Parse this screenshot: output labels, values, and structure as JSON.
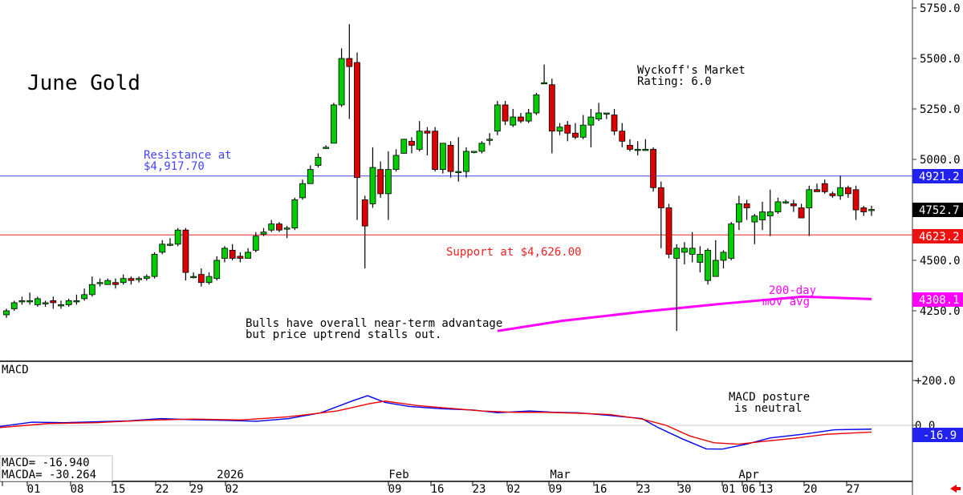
{
  "title": "June Gold",
  "rating": {
    "line1": "Wyckoff's Market",
    "line2": "Rating: 6.0"
  },
  "annotations": {
    "resistance": {
      "line1": "Resistance at",
      "line2": "$4,917.70"
    },
    "support": "Support at $4,626.00",
    "ma": {
      "line1": "200-day",
      "line2": "mov  avg"
    },
    "bulls": {
      "line1": "Bulls have overall near-term advantage",
      "line2": "but price uptrend stalls out."
    },
    "macd_posture": {
      "line1": "MACD posture",
      "line2": "is neutral"
    }
  },
  "price_axis": {
    "ticks": [
      4250,
      4500,
      4750,
      5000,
      5250,
      5500,
      5750
    ],
    "labels": [
      "4250.0",
      "4500.0",
      "4750.0",
      "5000.0",
      "5250.0",
      "5500.0",
      "5750.0"
    ]
  },
  "price_badges": {
    "resistance": "4921.2",
    "last": "4752.7",
    "support": "4623.2",
    "ma": "4308.1"
  },
  "macd_panel": {
    "label": "MACD",
    "axis_labels": [
      "+200.0",
      "0.0"
    ],
    "badge": "-16.9",
    "readout": {
      "macd": "MACD=   -16.940",
      "macda": "MACDA= -30.264"
    }
  },
  "x_axis": {
    "ticks": [
      "01",
      "08",
      "15",
      "22",
      "29",
      "02",
      "09",
      "16",
      "23",
      "02",
      "09",
      "16",
      "23",
      "30",
      "01",
      "06",
      "13",
      "20",
      "27"
    ],
    "months": [
      "2026",
      "Feb",
      "Mar",
      "Apr"
    ]
  },
  "colors": {
    "up": "#00cc00",
    "down": "#dd0000",
    "ma": "#ff00ff",
    "resistance": "#4444ff",
    "support": "#ee2222",
    "macd": "#0000ee",
    "macda": "#ee0000"
  },
  "chart_data": {
    "type": "candlestick",
    "ylim": [
      4130,
      5780
    ],
    "resistance": 4917.7,
    "support": 4626.0,
    "candles": [
      [
        4230,
        4250,
        4215,
        4260
      ],
      [
        4260,
        4290,
        4250,
        4300
      ],
      [
        4300,
        4300,
        4280,
        4320
      ],
      [
        4300,
        4300,
        4280,
        4340
      ],
      [
        4280,
        4310,
        4270,
        4320
      ],
      [
        4290,
        4290,
        4270,
        4300
      ],
      [
        4300,
        4290,
        4260,
        4320
      ],
      [
        4280,
        4280,
        4260,
        4300
      ],
      [
        4280,
        4300,
        4270,
        4310
      ],
      [
        4300,
        4300,
        4280,
        4330
      ],
      [
        4310,
        4330,
        4300,
        4360
      ],
      [
        4330,
        4380,
        4320,
        4420
      ],
      [
        4390,
        4390,
        4370,
        4410
      ],
      [
        4380,
        4400,
        4380,
        4410
      ],
      [
        4390,
        4380,
        4360,
        4410
      ],
      [
        4390,
        4410,
        4380,
        4430
      ],
      [
        4410,
        4400,
        4380,
        4420
      ],
      [
        4410,
        4410,
        4390,
        4420
      ],
      [
        4410,
        4420,
        4400,
        4430
      ],
      [
        4420,
        4530,
        4410,
        4540
      ],
      [
        4540,
        4580,
        4530,
        4600
      ],
      [
        4580,
        4580,
        4570,
        4610
      ],
      [
        4580,
        4650,
        4570,
        4660
      ],
      [
        4650,
        4440,
        4400,
        4660
      ],
      [
        4420,
        4420,
        4410,
        4440
      ],
      [
        4430,
        4390,
        4370,
        4460
      ],
      [
        4390,
        4420,
        4380,
        4440
      ],
      [
        4410,
        4500,
        4400,
        4520
      ],
      [
        4510,
        4560,
        4490,
        4570
      ],
      [
        4550,
        4510,
        4500,
        4580
      ],
      [
        4520,
        4510,
        4490,
        4540
      ],
      [
        4510,
        4540,
        4520,
        4560
      ],
      [
        4550,
        4620,
        4540,
        4640
      ],
      [
        4630,
        4640,
        4620,
        4660
      ],
      [
        4650,
        4680,
        4640,
        4700
      ],
      [
        4680,
        4650,
        4640,
        4690
      ],
      [
        4660,
        4660,
        4610,
        4670
      ],
      [
        4660,
        4800,
        4650,
        4810
      ],
      [
        4810,
        4880,
        4800,
        4900
      ],
      [
        4880,
        4950,
        4880,
        4970
      ],
      [
        4970,
        5010,
        4960,
        5030
      ],
      [
        5060,
        5060,
        5060,
        5070
      ],
      [
        5080,
        5270,
        5080,
        5280
      ],
      [
        5270,
        5500,
        5260,
        5550
      ],
      [
        5500,
        5460,
        5200,
        5670
      ],
      [
        5480,
        4910,
        4700,
        5530
      ],
      [
        4800,
        4670,
        4460,
        4820
      ],
      [
        4780,
        4960,
        4760,
        5060
      ],
      [
        4950,
        4830,
        4810,
        4990
      ],
      [
        4830,
        4950,
        4700,
        5040
      ],
      [
        4950,
        5020,
        4940,
        5050
      ],
      [
        5030,
        5100,
        5030,
        5100
      ],
      [
        5090,
        5070,
        5030,
        5110
      ],
      [
        5050,
        5140,
        5040,
        5190
      ],
      [
        5140,
        5130,
        5020,
        5160
      ],
      [
        5140,
        4950,
        4940,
        5160
      ],
      [
        4950,
        5080,
        4930,
        5080
      ],
      [
        5070,
        4940,
        4910,
        5090
      ],
      [
        4940,
        4940,
        4890,
        5110
      ],
      [
        4940,
        5040,
        4910,
        5060
      ],
      [
        5040,
        5040,
        5030,
        5040
      ],
      [
        5040,
        5080,
        5030,
        5090
      ],
      [
        5100,
        5100,
        5070,
        5130
      ],
      [
        5140,
        5270,
        5120,
        5290
      ],
      [
        5270,
        5190,
        5170,
        5290
      ],
      [
        5170,
        5210,
        5160,
        5250
      ],
      [
        5210,
        5190,
        5180,
        5230
      ],
      [
        5190,
        5230,
        5180,
        5250
      ],
      [
        5230,
        5320,
        5220,
        5330
      ],
      [
        5380,
        5380,
        5380,
        5470
      ],
      [
        5370,
        5140,
        5030,
        5400
      ],
      [
        5140,
        5160,
        5120,
        5180
      ],
      [
        5170,
        5130,
        5090,
        5190
      ],
      [
        5130,
        5110,
        5100,
        5180
      ],
      [
        5110,
        5170,
        5100,
        5220
      ],
      [
        5170,
        5210,
        5060,
        5250
      ],
      [
        5200,
        5230,
        5190,
        5280
      ],
      [
        5230,
        5230,
        5200,
        5230
      ],
      [
        5220,
        5140,
        5120,
        5250
      ],
      [
        5140,
        5090,
        5060,
        5180
      ],
      [
        5070,
        5050,
        5040,
        5100
      ],
      [
        5050,
        5050,
        5020,
        5090
      ],
      [
        5050,
        5050,
        5050,
        5100
      ],
      [
        5050,
        4860,
        4840,
        5060
      ],
      [
        4860,
        4760,
        4560,
        4890
      ],
      [
        4760,
        4530,
        4510,
        4780
      ],
      [
        4510,
        4560,
        4150,
        4580
      ],
      [
        4540,
        4560,
        4480,
        4590
      ],
      [
        4530,
        4560,
        4490,
        4640
      ],
      [
        4490,
        4530,
        4440,
        4570
      ],
      [
        4400,
        4550,
        4380,
        4560
      ],
      [
        4420,
        4500,
        4420,
        4600
      ],
      [
        4500,
        4540,
        4460,
        4550
      ],
      [
        4510,
        4680,
        4500,
        4690
      ],
      [
        4690,
        4780,
        4650,
        4820
      ],
      [
        4780,
        4760,
        4700,
        4800
      ],
      [
        4690,
        4720,
        4580,
        4730
      ],
      [
        4700,
        4740,
        4650,
        4790
      ],
      [
        4720,
        4740,
        4620,
        4850
      ],
      [
        4740,
        4790,
        4730,
        4810
      ],
      [
        4790,
        4790,
        4780,
        4800
      ],
      [
        4780,
        4770,
        4740,
        4800
      ],
      [
        4760,
        4710,
        4720,
        4780
      ],
      [
        4760,
        4850,
        4620,
        4870
      ],
      [
        4850,
        4840,
        4840,
        4880
      ],
      [
        4880,
        4840,
        4830,
        4900
      ],
      [
        4830,
        4820,
        4810,
        4840
      ],
      [
        4820,
        4860,
        4800,
        4920
      ],
      [
        4860,
        4830,
        4810,
        4870
      ],
      [
        4850,
        4750,
        4700,
        4870
      ],
      [
        4760,
        4740,
        4720,
        4770
      ],
      [
        4750,
        4752,
        4720,
        4770
      ]
    ],
    "ma200": [
      [
        620,
        4150
      ],
      [
        700,
        4200
      ],
      [
        800,
        4245
      ],
      [
        900,
        4285
      ],
      [
        1000,
        4320
      ],
      [
        1086,
        4308
      ]
    ],
    "macd": [
      [
        0,
        -5
      ],
      [
        40,
        14
      ],
      [
        80,
        12
      ],
      [
        120,
        16
      ],
      [
        160,
        20
      ],
      [
        200,
        30
      ],
      [
        240,
        25
      ],
      [
        280,
        22
      ],
      [
        320,
        18
      ],
      [
        360,
        30
      ],
      [
        400,
        56
      ],
      [
        440,
        110
      ],
      [
        458,
        132
      ],
      [
        480,
        102
      ],
      [
        510,
        84
      ],
      [
        550,
        74
      ],
      [
        590,
        68
      ],
      [
        620,
        56
      ],
      [
        660,
        64
      ],
      [
        690,
        58
      ],
      [
        720,
        56
      ],
      [
        760,
        44
      ],
      [
        800,
        30
      ],
      [
        820,
        -10
      ],
      [
        850,
        -60
      ],
      [
        880,
        -105
      ],
      [
        900,
        -106
      ],
      [
        930,
        -84
      ],
      [
        960,
        -56
      ],
      [
        1000,
        -40
      ],
      [
        1040,
        -20
      ],
      [
        1086,
        -17
      ]
    ],
    "macda": [
      [
        0,
        -10
      ],
      [
        60,
        8
      ],
      [
        120,
        12
      ],
      [
        180,
        22
      ],
      [
        240,
        28
      ],
      [
        300,
        24
      ],
      [
        360,
        38
      ],
      [
        420,
        64
      ],
      [
        460,
        96
      ],
      [
        480,
        108
      ],
      [
        520,
        88
      ],
      [
        560,
        76
      ],
      [
        600,
        64
      ],
      [
        640,
        58
      ],
      [
        680,
        58
      ],
      [
        720,
        54
      ],
      [
        760,
        48
      ],
      [
        800,
        28
      ],
      [
        830,
        0
      ],
      [
        860,
        -48
      ],
      [
        890,
        -78
      ],
      [
        920,
        -84
      ],
      [
        950,
        -72
      ],
      [
        990,
        -58
      ],
      [
        1030,
        -40
      ],
      [
        1086,
        -30
      ]
    ]
  }
}
